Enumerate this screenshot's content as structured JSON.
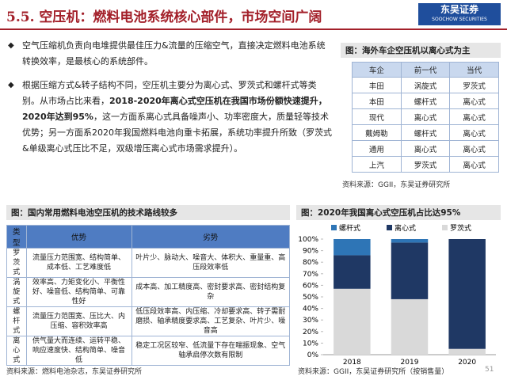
{
  "header": {
    "title": "5.5. 空压机：燃料电池系统核心部件，市场空间广阔",
    "logo_cn": "东吴证券",
    "logo_en": "SOOCHOW SECURITIES"
  },
  "bullets": [
    [
      {
        "text": "空气压缩机负责向电堆提供最佳压力&流量的压缩空气，直接决定燃料电池系统转换效率，是最核心的系统部件。",
        "bold": false
      }
    ],
    [
      {
        "text": "根据压缩方式&转子结构不同，空压机主要分为离心式、罗茨式和螺杆式等类别。从市场占比来看，",
        "bold": false
      },
      {
        "text": "2018-2020年离心式空压机在我国市场份额快速提升，2020年达到95%",
        "bold": true
      },
      {
        "text": "，这一方面系离心式具备噪声小、功率密度大，质量轻等技术优势；另一方面系2020年我国燃料电池向重卡拓展，系统功率提升所致（罗茨式&单级离心式压比不足，双级增压离心式市场需求提升）。",
        "bold": false
      }
    ]
  ],
  "overseas_table": {
    "title": "图：海外车企空压机以离心式为主",
    "columns": [
      "车企",
      "前一代",
      "当代"
    ],
    "rows": [
      [
        "丰田",
        "涡旋式",
        "罗茨式"
      ],
      [
        "本田",
        "螺杆式",
        "离心式"
      ],
      [
        "现代",
        "离心式",
        "离心式"
      ],
      [
        "戴姆勒",
        "螺杆式",
        "离心式"
      ],
      [
        "通用",
        "离心式",
        "离心式"
      ],
      [
        "上汽",
        "罗茨式",
        "离心式"
      ]
    ],
    "source": "资料来源：GGII，东吴证券研究所"
  },
  "domestic_table": {
    "title": "图：国内常用燃料电池空压机的技术路线较多",
    "columns": [
      "类型",
      "优势",
      "劣势"
    ],
    "rows": [
      [
        "罗茨式",
        "流量压力范围宽、结构简单、成本低、工艺难度低",
        "叶片少、脉动大、噪音大、体积大、重量重、高压段效率低"
      ],
      [
        "涡旋式",
        "效率高、力矩变化小、平衡性好、噪音低、结构简单、可靠性好",
        "成本高、加工精度高、密封要求高、密封结构复杂"
      ],
      [
        "螺杆式",
        "流量压力范围宽、压比大、内压缩、容积效率高",
        "低压段效率高、内压缩、冷却要求高、转子需耐磨损、轴承精度要求高、工艺复杂、叶片少、噪音高"
      ],
      [
        "离心式",
        "供气量大而连续、运转平稳、响应速度快、结构简单、噪音低",
        "稳定工况区较窄、低流量下存在喘振现象、空气轴承启停次数有限制"
      ]
    ],
    "source": "资料来源：燃料电池杂志，东吴证券研究所"
  },
  "chart_data": {
    "type": "bar",
    "stacked": true,
    "title": "图：2020年我国离心式空压机占比达95%",
    "categories": [
      "2018",
      "2019",
      "2020"
    ],
    "series": [
      {
        "name": "罗茨式",
        "color": "#d9d9d9",
        "values": [
          57,
          48,
          5
        ]
      },
      {
        "name": "离心式",
        "color": "#1f3864",
        "values": [
          29,
          49,
          95
        ]
      },
      {
        "name": "螺杆式",
        "color": "#2e75b6",
        "values": [
          14,
          3,
          0
        ]
      }
    ],
    "legend_order": [
      "螺杆式",
      "离心式",
      "罗茨式"
    ],
    "ylim": [
      0,
      100
    ],
    "yticks": [
      {
        "value": 0,
        "label": "0%"
      },
      {
        "value": 10,
        "label": "10%"
      },
      {
        "value": 20,
        "label": "20%"
      },
      {
        "value": 30,
        "label": "30%"
      },
      {
        "value": 40,
        "label": "40%"
      },
      {
        "value": 50,
        "label": "50%"
      },
      {
        "value": 60,
        "label": "60%"
      },
      {
        "value": 70,
        "label": "70%"
      },
      {
        "value": 80,
        "label": "80%"
      },
      {
        "value": 90,
        "label": "90%"
      },
      {
        "value": 100,
        "label": "100%"
      }
    ],
    "source": "资料来源：GGII，东吴证券研究所（按销售量）"
  },
  "page_number": "51"
}
